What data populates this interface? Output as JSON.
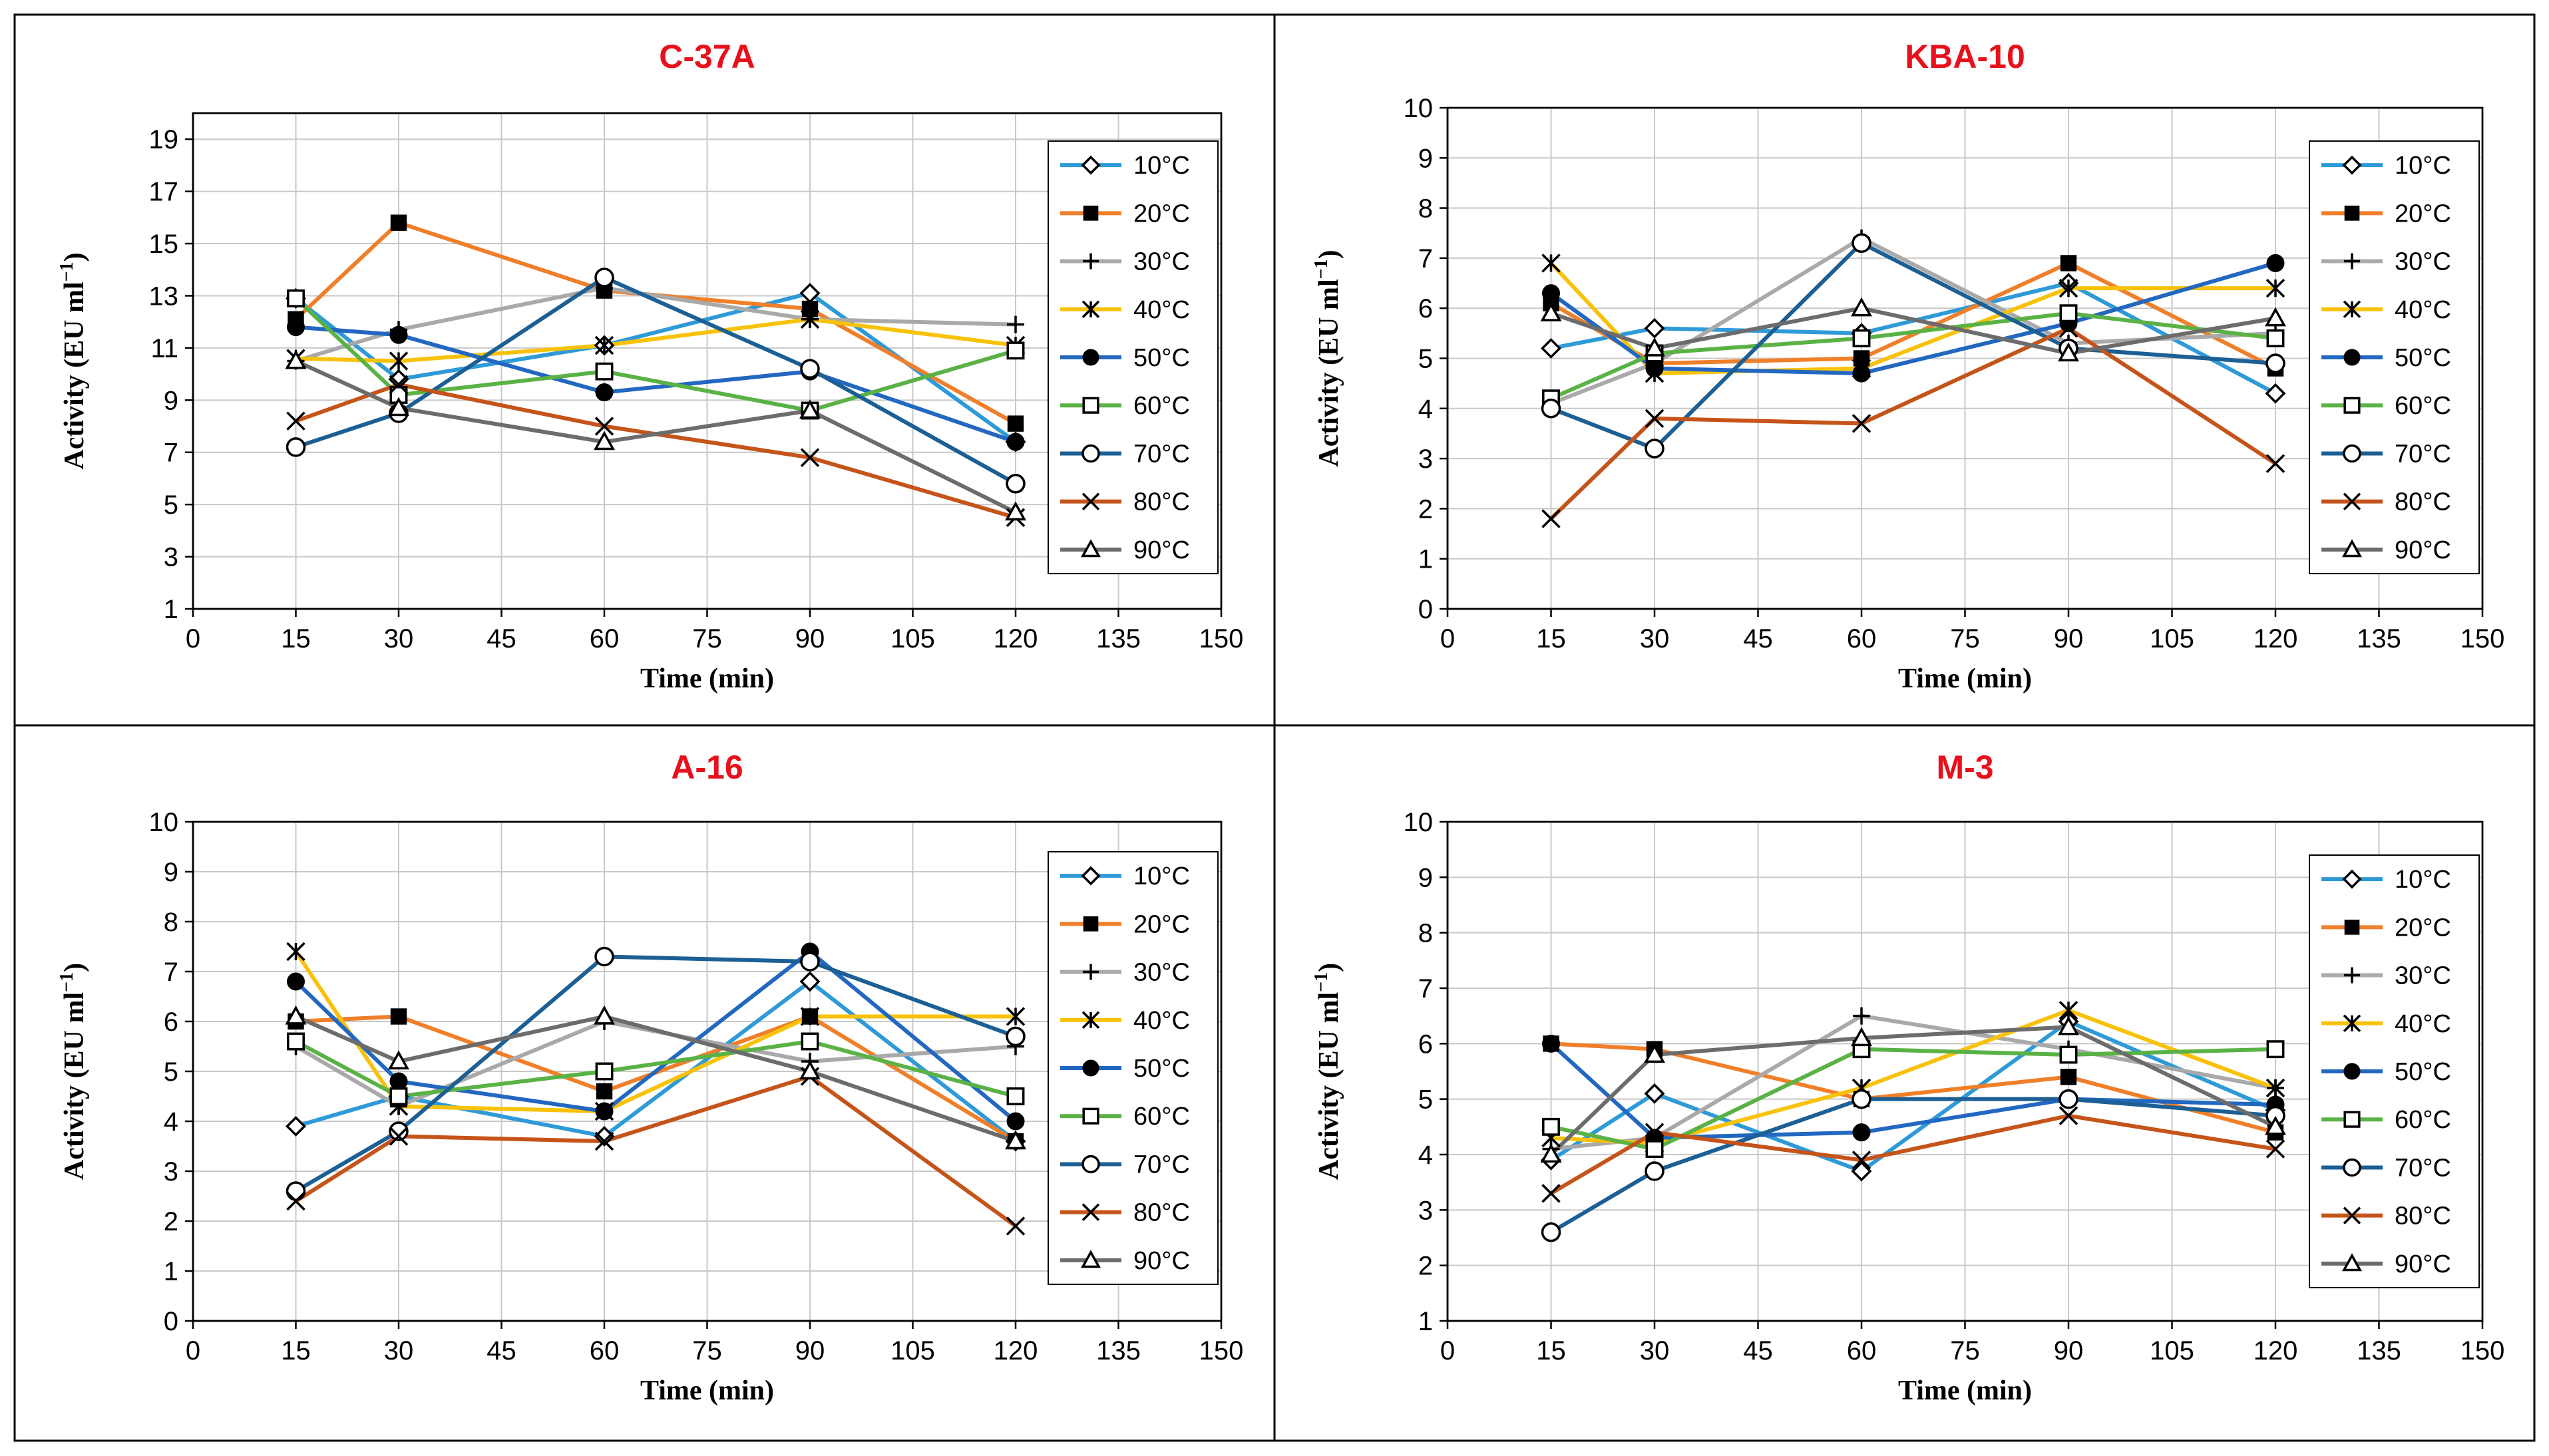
{
  "chart_data": [
    {
      "type": "line",
      "title": "C-37A",
      "xlabel": "Time (min)",
      "ylabel": "Activity (EU ml",
      "ylabel_sup": "−1",
      "ylabel_end": ")",
      "x": [
        15,
        30,
        60,
        90,
        120
      ],
      "xlim": [
        0,
        150
      ],
      "ylim": [
        1,
        20
      ],
      "xticks": [
        "0",
        "15",
        "30",
        "45",
        "60",
        "75",
        "90",
        "105",
        "120",
        "135",
        "150"
      ],
      "yticks": [
        "1",
        "3",
        "5",
        "7",
        "9",
        "11",
        "13",
        "15",
        "17",
        "19"
      ],
      "grid": true,
      "legend": "right",
      "series": [
        {
          "name": "10°C",
          "color": "#2e9ad7",
          "marker": "diamond-open",
          "values": [
            12.9,
            9.8,
            11.1,
            13.1,
            7.4
          ]
        },
        {
          "name": "20°C",
          "color": "#f07f2a",
          "marker": "square-filled",
          "values": [
            12.1,
            15.8,
            13.2,
            12.5,
            8.1
          ]
        },
        {
          "name": "30°C",
          "color": "#a9a9a9",
          "marker": "plus",
          "values": [
            10.5,
            11.7,
            13.3,
            12.1,
            11.9
          ]
        },
        {
          "name": "40°C",
          "color": "#f8c20a",
          "marker": "asterisk",
          "values": [
            10.6,
            10.5,
            11.1,
            12.1,
            11.1
          ]
        },
        {
          "name": "50°C",
          "color": "#2267c0",
          "marker": "circle-filled",
          "values": [
            11.8,
            11.5,
            9.3,
            10.1,
            7.4
          ]
        },
        {
          "name": "60°C",
          "color": "#5ab246",
          "marker": "square-open",
          "values": [
            12.9,
            9.2,
            10.1,
            8.6,
            10.9
          ]
        },
        {
          "name": "70°C",
          "color": "#1c5f94",
          "marker": "circle-open",
          "values": [
            7.2,
            8.5,
            13.7,
            10.2,
            5.8
          ]
        },
        {
          "name": "80°C",
          "color": "#c5541a",
          "marker": "x",
          "values": [
            8.2,
            9.6,
            8.0,
            6.8,
            4.5
          ]
        },
        {
          "name": "90°C",
          "color": "#6c6c6c",
          "marker": "triangle-open",
          "values": [
            10.5,
            8.7,
            7.4,
            8.6,
            4.7
          ]
        }
      ]
    },
    {
      "type": "line",
      "title": "KBA-10",
      "xlabel": "Time (min)",
      "ylabel": "Activity (EU ml",
      "ylabel_sup": "−1",
      "ylabel_end": ")",
      "x": [
        15,
        30,
        60,
        90,
        120
      ],
      "xlim": [
        0,
        150
      ],
      "ylim": [
        0,
        10
      ],
      "xticks": [
        "0",
        "15",
        "30",
        "45",
        "60",
        "75",
        "90",
        "105",
        "120",
        "135",
        "150"
      ],
      "yticks": [
        "0",
        "1",
        "2",
        "3",
        "4",
        "5",
        "6",
        "7",
        "8",
        "9",
        "10"
      ],
      "grid": true,
      "legend": "right",
      "series": [
        {
          "name": "10°C",
          "color": "#2e9ad7",
          "marker": "diamond-open",
          "values": [
            5.2,
            5.6,
            5.5,
            6.5,
            4.3
          ]
        },
        {
          "name": "20°C",
          "color": "#f07f2a",
          "marker": "square-filled",
          "values": [
            6.1,
            4.9,
            5.0,
            6.9,
            4.8
          ]
        },
        {
          "name": "30°C",
          "color": "#a9a9a9",
          "marker": "plus",
          "values": [
            4.1,
            4.9,
            7.4,
            5.3,
            5.5
          ]
        },
        {
          "name": "40°C",
          "color": "#f8c20a",
          "marker": "asterisk",
          "values": [
            6.9,
            4.7,
            4.8,
            6.4,
            6.4
          ]
        },
        {
          "name": "50°C",
          "color": "#2267c0",
          "marker": "circle-filled",
          "values": [
            6.3,
            4.8,
            4.7,
            5.7,
            6.9
          ]
        },
        {
          "name": "60°C",
          "color": "#5ab246",
          "marker": "square-open",
          "values": [
            4.2,
            5.1,
            5.4,
            5.9,
            5.4
          ]
        },
        {
          "name": "70°C",
          "color": "#1c5f94",
          "marker": "circle-open",
          "values": [
            4.0,
            3.2,
            7.3,
            5.2,
            4.9
          ]
        },
        {
          "name": "80°C",
          "color": "#c5541a",
          "marker": "x",
          "values": [
            1.8,
            3.8,
            3.7,
            5.6,
            2.9
          ]
        },
        {
          "name": "90°C",
          "color": "#6c6c6c",
          "marker": "triangle-open",
          "values": [
            5.9,
            5.2,
            6.0,
            5.1,
            5.8
          ]
        }
      ]
    },
    {
      "type": "line",
      "title": "A-16",
      "xlabel": "Time (min)",
      "ylabel": "Activity (EU ml",
      "ylabel_sup": "−1",
      "ylabel_end": ")",
      "x": [
        15,
        30,
        60,
        90,
        120
      ],
      "xlim": [
        0,
        150
      ],
      "ylim": [
        0,
        10
      ],
      "xticks": [
        "0",
        "15",
        "30",
        "45",
        "60",
        "75",
        "90",
        "105",
        "120",
        "135",
        "150"
      ],
      "yticks": [
        "0",
        "1",
        "2",
        "3",
        "4",
        "5",
        "6",
        "7",
        "8",
        "9",
        "10"
      ],
      "grid": true,
      "legend": "right",
      "series": [
        {
          "name": "10°C",
          "color": "#2e9ad7",
          "marker": "diamond-open",
          "values": [
            3.9,
            4.5,
            3.7,
            6.8,
            3.6
          ]
        },
        {
          "name": "20°C",
          "color": "#f07f2a",
          "marker": "square-filled",
          "values": [
            6.0,
            6.1,
            4.6,
            6.1,
            3.6
          ]
        },
        {
          "name": "30°C",
          "color": "#a9a9a9",
          "marker": "plus",
          "values": [
            5.5,
            4.3,
            6.0,
            5.2,
            5.5
          ]
        },
        {
          "name": "40°C",
          "color": "#f8c20a",
          "marker": "asterisk",
          "values": [
            7.4,
            4.3,
            4.2,
            6.1,
            6.1
          ]
        },
        {
          "name": "50°C",
          "color": "#2267c0",
          "marker": "circle-filled",
          "values": [
            6.8,
            4.8,
            4.2,
            7.4,
            4.0
          ]
        },
        {
          "name": "60°C",
          "color": "#5ab246",
          "marker": "square-open",
          "values": [
            5.6,
            4.5,
            5.0,
            5.6,
            4.5
          ]
        },
        {
          "name": "70°C",
          "color": "#1c5f94",
          "marker": "circle-open",
          "values": [
            2.6,
            3.8,
            7.3,
            7.2,
            5.7
          ]
        },
        {
          "name": "80°C",
          "color": "#c5541a",
          "marker": "x",
          "values": [
            2.4,
            3.7,
            3.6,
            4.9,
            1.9
          ]
        },
        {
          "name": "90°C",
          "color": "#6c6c6c",
          "marker": "triangle-open",
          "values": [
            6.1,
            5.2,
            6.1,
            5.0,
            3.6
          ]
        }
      ]
    },
    {
      "type": "line",
      "title": "M-3",
      "xlabel": "Time (min)",
      "ylabel": "Activity (EU ml",
      "ylabel_sup": "−1",
      "ylabel_end": ")",
      "x": [
        15,
        30,
        60,
        90,
        120
      ],
      "xlim": [
        0,
        150
      ],
      "ylim": [
        1,
        10
      ],
      "xticks": [
        "0",
        "15",
        "30",
        "45",
        "60",
        "75",
        "90",
        "105",
        "120",
        "135",
        "150"
      ],
      "yticks": [
        "1",
        "2",
        "3",
        "4",
        "5",
        "6",
        "7",
        "8",
        "9",
        "10"
      ],
      "grid": true,
      "legend": "right",
      "series": [
        {
          "name": "10°C",
          "color": "#2e9ad7",
          "marker": "diamond-open",
          "values": [
            3.9,
            5.1,
            3.7,
            6.4,
            4.8
          ]
        },
        {
          "name": "20°C",
          "color": "#f07f2a",
          "marker": "square-filled",
          "values": [
            6.0,
            5.9,
            5.0,
            5.4,
            4.4
          ]
        },
        {
          "name": "30°C",
          "color": "#a9a9a9",
          "marker": "plus",
          "values": [
            4.1,
            4.3,
            6.5,
            5.9,
            5.2
          ]
        },
        {
          "name": "40°C",
          "color": "#f8c20a",
          "marker": "asterisk",
          "values": [
            4.3,
            4.2,
            5.2,
            6.6,
            5.2
          ]
        },
        {
          "name": "50°C",
          "color": "#2267c0",
          "marker": "circle-filled",
          "values": [
            6.0,
            4.3,
            4.4,
            5.0,
            4.9
          ]
        },
        {
          "name": "60°C",
          "color": "#5ab246",
          "marker": "square-open",
          "values": [
            4.5,
            4.1,
            5.9,
            5.8,
            5.9
          ]
        },
        {
          "name": "70°C",
          "color": "#1c5f94",
          "marker": "circle-open",
          "values": [
            2.6,
            3.7,
            5.0,
            5.0,
            4.7
          ]
        },
        {
          "name": "80°C",
          "color": "#c5541a",
          "marker": "x",
          "values": [
            3.3,
            4.4,
            3.9,
            4.7,
            4.1
          ]
        },
        {
          "name": "90°C",
          "color": "#6c6c6c",
          "marker": "triangle-open",
          "values": [
            4.0,
            5.8,
            6.1,
            6.3,
            4.5
          ]
        }
      ]
    }
  ]
}
